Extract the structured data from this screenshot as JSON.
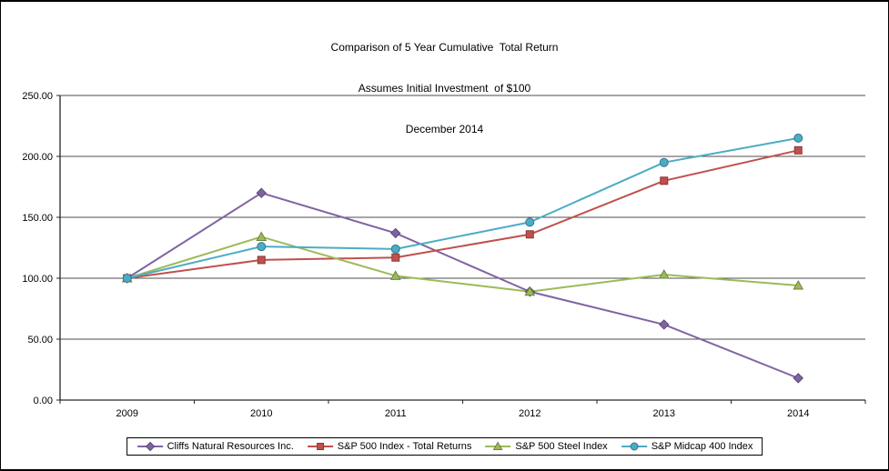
{
  "title_lines": [
    "Comparison of 5 Year Cumulative  Total Return",
    "Assumes Initial Investment  of $100",
    "December 2014"
  ],
  "chart_data": {
    "type": "line",
    "categories": [
      "2009",
      "2010",
      "2011",
      "2012",
      "2013",
      "2014"
    ],
    "series": [
      {
        "name": "Cliffs Natural Resources Inc.",
        "color": "#8064A2",
        "marker": "diamond",
        "values": [
          100,
          170,
          137,
          89,
          62,
          18
        ]
      },
      {
        "name": "S&P 500 Index - Total Returns",
        "color": "#C0504D",
        "marker": "square",
        "values": [
          100,
          115,
          117,
          136,
          180,
          205
        ]
      },
      {
        "name": "S&P 500 Steel Index",
        "color": "#9BBB59",
        "marker": "triangle",
        "values": [
          100,
          134,
          102,
          89,
          103,
          94
        ]
      },
      {
        "name": "S&P Midcap 400 Index",
        "color": "#4BACC6",
        "marker": "circle",
        "values": [
          100,
          126,
          124,
          146,
          195,
          215
        ]
      }
    ],
    "ylim": [
      0,
      250
    ],
    "ytick_step": 50,
    "ytick_labels": [
      "0.00",
      "50.00",
      "100.00",
      "150.00",
      "200.00",
      "250.00"
    ],
    "grid": true,
    "legend_position": "bottom",
    "axis_color": "#262626",
    "gridline_color": "#4d4d4d"
  }
}
